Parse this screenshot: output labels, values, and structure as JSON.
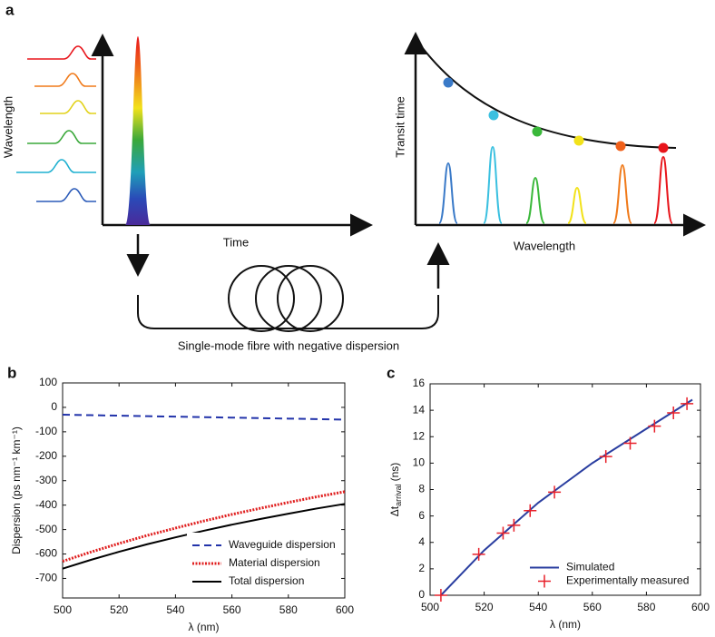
{
  "diagram": {
    "panel_label": "a",
    "left_ylabel": "Wavelength",
    "left_xlabel": "Time",
    "right_ylabel": "Transit time",
    "right_xlabel": "Wavelength",
    "caption": "Single-mode fibre with negative dispersion"
  },
  "chart_data": [
    {
      "type": "line",
      "panel_label": "b",
      "xlabel": "λ (nm)",
      "ylabel": "Dispersion (ps nm⁻¹ km⁻¹)",
      "x": [
        500,
        510,
        520,
        530,
        540,
        550,
        560,
        570,
        580,
        590,
        600
      ],
      "series": [
        {
          "name": "Waveguide dispersion",
          "color": "#2233aa",
          "linestyle": "dashed",
          "values": [
            -30,
            -32,
            -34,
            -36,
            -38,
            -40,
            -42,
            -44,
            -46,
            -48,
            -50
          ]
        },
        {
          "name": "Material dispersion",
          "color": "#e02020",
          "linestyle": "dotted",
          "values": [
            -630,
            -592,
            -557,
            -524,
            -494,
            -465,
            -438,
            -413,
            -389,
            -366,
            -345
          ]
        },
        {
          "name": "Total dispersion",
          "color": "#000000",
          "linestyle": "solid",
          "values": [
            -660,
            -624,
            -591,
            -560,
            -532,
            -505,
            -480,
            -457,
            -435,
            -414,
            -395
          ]
        }
      ],
      "xlim": [
        500,
        600
      ],
      "xticks": [
        500,
        520,
        540,
        560,
        580,
        600
      ],
      "ylim": [
        -780,
        100
      ],
      "yticks": [
        100,
        0,
        -100,
        -200,
        -300,
        -400,
        -500,
        -600,
        -700
      ],
      "legend": "lower right"
    },
    {
      "type": "line",
      "panel_label": "c",
      "xlabel": "λ (nm)",
      "ylabel": [
        "Δt",
        "arrival",
        "(ns)"
      ],
      "series": [
        {
          "name": "Simulated",
          "type": "line",
          "color": "#2a3ea0",
          "linestyle": "solid",
          "x": [
            504,
            520,
            540,
            560,
            580,
            597
          ],
          "values": [
            0,
            3.4,
            7.0,
            10.0,
            12.6,
            14.8
          ]
        },
        {
          "name": "Experimentally measured",
          "type": "scatter",
          "color": "#e8202a",
          "marker": "+",
          "x": [
            504,
            518,
            527,
            531,
            537,
            546,
            565,
            574,
            583,
            590,
            595
          ],
          "values": [
            0,
            3.1,
            4.7,
            5.3,
            6.4,
            7.8,
            10.5,
            11.5,
            12.8,
            13.8,
            14.5
          ]
        }
      ],
      "xlim": [
        500,
        600
      ],
      "xticks": [
        500,
        520,
        540,
        560,
        580,
        600
      ],
      "ylim": [
        0,
        16
      ],
      "yticks": [
        0,
        2,
        4,
        6,
        8,
        10,
        12,
        14,
        16
      ],
      "legend": "lower right"
    }
  ]
}
